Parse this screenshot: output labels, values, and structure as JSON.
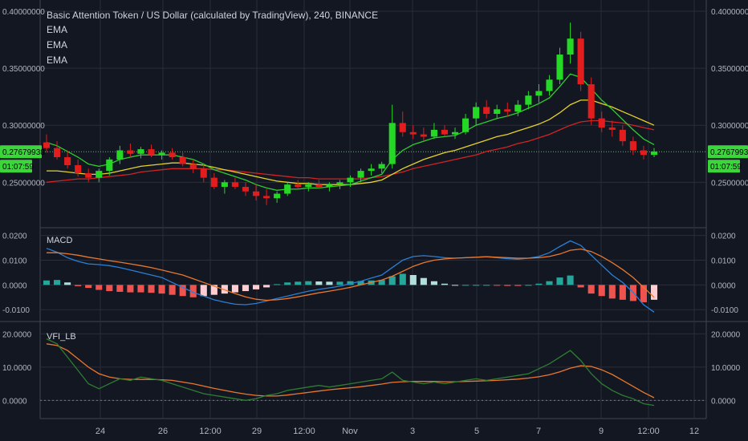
{
  "title": "Basic Attention Token / US Dollar (calculated by TradingView), 240, BINANCE",
  "legend": [
    "EMA",
    "EMA",
    "EMA"
  ],
  "colors": {
    "background": "#131722",
    "grid": "#2a2e39",
    "axisText": "#b2b5be",
    "up": "#26d826",
    "down": "#e11d1d",
    "emaFast": "#2ecc2e",
    "emaMid": "#e6d22a",
    "emaSlow": "#d12424",
    "macd": "#2a7fd6",
    "signal": "#e8782e",
    "histUp": "#26a69a",
    "histUpLight": "#b2dfdb",
    "histDown": "#ef5350",
    "histDownLight": "#ffcdd2",
    "vfi": "#2e7d32",
    "vfiSignal": "#e8782e",
    "priceLine": "#3cd63c"
  },
  "xaxis": {
    "ticks": [
      "24",
      "26",
      "12:00",
      "29",
      "12:00",
      "Nov",
      "3",
      "5",
      "7",
      "9",
      "12:00",
      "12"
    ]
  },
  "current_price": "0.27679938",
  "countdown": "01:07:59",
  "price_axis": [
    "0.40000000",
    "0.35000000",
    "0.30000000",
    "0.25000000"
  ],
  "macd_axis": [
    "0.0200",
    "0.0100",
    "0.0000",
    "-0.0100"
  ],
  "vfi_axis": [
    "20.0000",
    "10.0000",
    "0.0000"
  ],
  "macd_title": "MACD",
  "vfi_title": "VFI_LB",
  "chart_data": [
    {
      "type": "candlestick",
      "ylim": [
        0.22,
        0.4
      ],
      "candles": [
        [
          0.285,
          0.292,
          0.276,
          0.28
        ],
        [
          0.28,
          0.286,
          0.27,
          0.272
        ],
        [
          0.272,
          0.278,
          0.262,
          0.265
        ],
        [
          0.265,
          0.27,
          0.255,
          0.258
        ],
        [
          0.258,
          0.262,
          0.25,
          0.254
        ],
        [
          0.254,
          0.262,
          0.25,
          0.26
        ],
        [
          0.26,
          0.272,
          0.256,
          0.27
        ],
        [
          0.27,
          0.282,
          0.266,
          0.278
        ],
        [
          0.278,
          0.284,
          0.272,
          0.275
        ],
        [
          0.275,
          0.281,
          0.271,
          0.279
        ],
        [
          0.279,
          0.283,
          0.272,
          0.274
        ],
        [
          0.274,
          0.278,
          0.27,
          0.276
        ],
        [
          0.276,
          0.28,
          0.27,
          0.272
        ],
        [
          0.272,
          0.276,
          0.264,
          0.266
        ],
        [
          0.266,
          0.27,
          0.258,
          0.262
        ],
        [
          0.262,
          0.266,
          0.25,
          0.254
        ],
        [
          0.254,
          0.258,
          0.244,
          0.246
        ],
        [
          0.246,
          0.252,
          0.24,
          0.25
        ],
        [
          0.25,
          0.254,
          0.244,
          0.246
        ],
        [
          0.246,
          0.25,
          0.238,
          0.242
        ],
        [
          0.242,
          0.248,
          0.234,
          0.238
        ],
        [
          0.238,
          0.244,
          0.23,
          0.236
        ],
        [
          0.236,
          0.242,
          0.232,
          0.24
        ],
        [
          0.24,
          0.25,
          0.238,
          0.248
        ],
        [
          0.248,
          0.252,
          0.244,
          0.246
        ],
        [
          0.246,
          0.25,
          0.242,
          0.248
        ],
        [
          0.248,
          0.252,
          0.244,
          0.246
        ],
        [
          0.246,
          0.25,
          0.242,
          0.248
        ],
        [
          0.248,
          0.252,
          0.244,
          0.25
        ],
        [
          0.25,
          0.256,
          0.246,
          0.254
        ],
        [
          0.254,
          0.262,
          0.25,
          0.26
        ],
        [
          0.26,
          0.266,
          0.256,
          0.262
        ],
        [
          0.262,
          0.268,
          0.258,
          0.266
        ],
        [
          0.266,
          0.318,
          0.262,
          0.302
        ],
        [
          0.302,
          0.312,
          0.29,
          0.294
        ],
        [
          0.294,
          0.3,
          0.288,
          0.292
        ],
        [
          0.292,
          0.298,
          0.286,
          0.29
        ],
        [
          0.29,
          0.302,
          0.288,
          0.296
        ],
        [
          0.296,
          0.3,
          0.29,
          0.292
        ],
        [
          0.292,
          0.298,
          0.288,
          0.294
        ],
        [
          0.294,
          0.31,
          0.292,
          0.306
        ],
        [
          0.306,
          0.32,
          0.3,
          0.316
        ],
        [
          0.316,
          0.322,
          0.306,
          0.31
        ],
        [
          0.31,
          0.318,
          0.306,
          0.314
        ],
        [
          0.314,
          0.32,
          0.308,
          0.312
        ],
        [
          0.312,
          0.322,
          0.308,
          0.318
        ],
        [
          0.318,
          0.33,
          0.314,
          0.326
        ],
        [
          0.326,
          0.336,
          0.32,
          0.33
        ],
        [
          0.33,
          0.344,
          0.326,
          0.34
        ],
        [
          0.34,
          0.368,
          0.336,
          0.362
        ],
        [
          0.362,
          0.39,
          0.354,
          0.376
        ],
        [
          0.376,
          0.382,
          0.33,
          0.336
        ],
        [
          0.336,
          0.342,
          0.3,
          0.306
        ],
        [
          0.306,
          0.312,
          0.294,
          0.298
        ],
        [
          0.298,
          0.304,
          0.29,
          0.296
        ],
        [
          0.296,
          0.3,
          0.282,
          0.286
        ],
        [
          0.286,
          0.29,
          0.274,
          0.278
        ],
        [
          0.278,
          0.282,
          0.27,
          0.274
        ],
        [
          0.274,
          0.28,
          0.272,
          0.277
        ]
      ],
      "ema": {
        "fast": [
          0.285,
          0.282,
          0.277,
          0.272,
          0.266,
          0.264,
          0.266,
          0.27,
          0.272,
          0.274,
          0.274,
          0.274,
          0.274,
          0.272,
          0.27,
          0.266,
          0.261,
          0.258,
          0.255,
          0.252,
          0.248,
          0.245,
          0.243,
          0.244,
          0.244,
          0.245,
          0.245,
          0.246,
          0.247,
          0.248,
          0.251,
          0.254,
          0.257,
          0.27,
          0.278,
          0.283,
          0.286,
          0.289,
          0.29,
          0.291,
          0.295,
          0.3,
          0.303,
          0.306,
          0.308,
          0.311,
          0.315,
          0.319,
          0.324,
          0.334,
          0.345,
          0.342,
          0.332,
          0.322,
          0.314,
          0.305,
          0.296,
          0.288,
          0.283
        ],
        "mid": [
          0.26,
          0.26,
          0.259,
          0.258,
          0.257,
          0.257,
          0.258,
          0.26,
          0.262,
          0.264,
          0.265,
          0.266,
          0.267,
          0.267,
          0.266,
          0.265,
          0.263,
          0.261,
          0.259,
          0.257,
          0.255,
          0.253,
          0.251,
          0.25,
          0.249,
          0.249,
          0.248,
          0.248,
          0.248,
          0.248,
          0.249,
          0.25,
          0.252,
          0.257,
          0.262,
          0.266,
          0.27,
          0.273,
          0.276,
          0.278,
          0.281,
          0.284,
          0.287,
          0.29,
          0.292,
          0.295,
          0.298,
          0.301,
          0.305,
          0.311,
          0.318,
          0.322,
          0.322,
          0.319,
          0.316,
          0.312,
          0.308,
          0.304,
          0.3
        ],
        "slow": [
          0.25,
          0.251,
          0.252,
          0.253,
          0.253,
          0.254,
          0.255,
          0.256,
          0.257,
          0.259,
          0.26,
          0.261,
          0.262,
          0.262,
          0.262,
          0.262,
          0.261,
          0.261,
          0.26,
          0.259,
          0.258,
          0.257,
          0.256,
          0.255,
          0.254,
          0.254,
          0.253,
          0.253,
          0.253,
          0.253,
          0.253,
          0.254,
          0.255,
          0.257,
          0.259,
          0.262,
          0.264,
          0.266,
          0.268,
          0.27,
          0.272,
          0.274,
          0.277,
          0.279,
          0.281,
          0.284,
          0.286,
          0.289,
          0.292,
          0.296,
          0.3,
          0.303,
          0.304,
          0.304,
          0.303,
          0.302,
          0.3,
          0.298,
          0.296
        ]
      }
    },
    {
      "type": "line",
      "name": "MACD",
      "ylim": [
        -0.0135,
        0.0215
      ],
      "macd": [
        0.0148,
        0.0132,
        0.011,
        0.0095,
        0.0085,
        0.0082,
        0.0078,
        0.007,
        0.006,
        0.005,
        0.004,
        0.003,
        0.001,
        -0.001,
        -0.003,
        -0.0045,
        -0.006,
        -0.007,
        -0.0078,
        -0.008,
        -0.0075,
        -0.0065,
        -0.0055,
        -0.0045,
        -0.0035,
        -0.0025,
        -0.0018,
        -0.0012,
        -0.0005,
        0.0005,
        0.0015,
        0.0028,
        0.004,
        0.007,
        0.01,
        0.0115,
        0.0118,
        0.0115,
        0.011,
        0.0108,
        0.011,
        0.0112,
        0.0114,
        0.011,
        0.0106,
        0.0104,
        0.0108,
        0.0115,
        0.013,
        0.0155,
        0.0178,
        0.016,
        0.012,
        0.008,
        0.004,
        0.001,
        -0.003,
        -0.008,
        -0.011
      ],
      "signal": [
        0.013,
        0.013,
        0.0126,
        0.012,
        0.0112,
        0.0105,
        0.0098,
        0.0092,
        0.0085,
        0.0078,
        0.007,
        0.006,
        0.005,
        0.004,
        0.0025,
        0.001,
        -0.0005,
        -0.002,
        -0.0035,
        -0.0048,
        -0.0058,
        -0.0062,
        -0.006,
        -0.0055,
        -0.0048,
        -0.004,
        -0.0032,
        -0.0025,
        -0.0018,
        -0.001,
        0.0,
        0.001,
        0.002,
        0.0035,
        0.0055,
        0.0075,
        0.009,
        0.01,
        0.0105,
        0.0108,
        0.011,
        0.0112,
        0.0114,
        0.0112,
        0.011,
        0.0108,
        0.0108,
        0.011,
        0.0115,
        0.0125,
        0.014,
        0.0145,
        0.0135,
        0.0115,
        0.009,
        0.0062,
        0.003,
        -0.001,
        -0.005
      ],
      "hist": [
        0.0018,
        0.002,
        0.001,
        -0.0005,
        -0.0012,
        -0.002,
        -0.0025,
        -0.0028,
        -0.003,
        -0.003,
        -0.0032,
        -0.0035,
        -0.004,
        -0.0045,
        -0.005,
        -0.0045,
        -0.004,
        -0.0035,
        -0.003,
        -0.0025,
        -0.0018,
        -0.001,
        0.0003,
        0.001,
        0.0013,
        0.0015,
        0.0014,
        0.0013,
        0.0013,
        0.0015,
        0.0016,
        0.0018,
        0.002,
        0.0035,
        0.0045,
        0.004,
        0.0028,
        0.0015,
        0.0005,
        0.0,
        0.0,
        0.0,
        0.0,
        -0.0002,
        -0.0004,
        -0.0004,
        0.0,
        0.0005,
        0.0015,
        0.003,
        0.0038,
        -0.001,
        -0.0035,
        -0.0045,
        -0.0055,
        -0.006,
        -0.0065,
        -0.007,
        -0.006
      ]
    },
    {
      "type": "line",
      "name": "VFI_LB",
      "ylim": [
        -4.5,
        22.5
      ],
      "vfi": [
        18.5,
        17.0,
        13.0,
        9.0,
        5.0,
        3.5,
        5.0,
        6.5,
        6.0,
        7.0,
        6.5,
        6.0,
        5.0,
        4.0,
        3.0,
        2.0,
        1.5,
        1.0,
        0.5,
        0.0,
        0.5,
        1.5,
        2.0,
        3.0,
        3.5,
        4.0,
        4.5,
        4.0,
        4.5,
        5.0,
        5.5,
        6.0,
        6.5,
        8.5,
        6.0,
        5.5,
        5.0,
        5.5,
        5.0,
        5.5,
        6.0,
        6.5,
        6.0,
        6.5,
        7.0,
        7.5,
        8.0,
        9.5,
        11.0,
        13.0,
        15.0,
        12.0,
        8.0,
        5.0,
        3.0,
        1.5,
        0.5,
        -1.0,
        -1.5
      ],
      "signal": [
        17.0,
        16.5,
        15.0,
        12.5,
        10.0,
        8.0,
        7.0,
        6.5,
        6.3,
        6.3,
        6.3,
        6.2,
        6.0,
        5.5,
        5.0,
        4.3,
        3.6,
        3.0,
        2.4,
        1.9,
        1.5,
        1.3,
        1.3,
        1.6,
        2.0,
        2.4,
        2.8,
        3.2,
        3.5,
        3.8,
        4.1,
        4.5,
        4.9,
        5.4,
        5.6,
        5.7,
        5.7,
        5.7,
        5.6,
        5.6,
        5.7,
        5.8,
        5.9,
        6.0,
        6.2,
        6.4,
        6.7,
        7.1,
        7.7,
        8.6,
        9.7,
        10.4,
        10.2,
        9.2,
        7.8,
        6.0,
        4.2,
        2.4,
        0.8
      ]
    }
  ]
}
